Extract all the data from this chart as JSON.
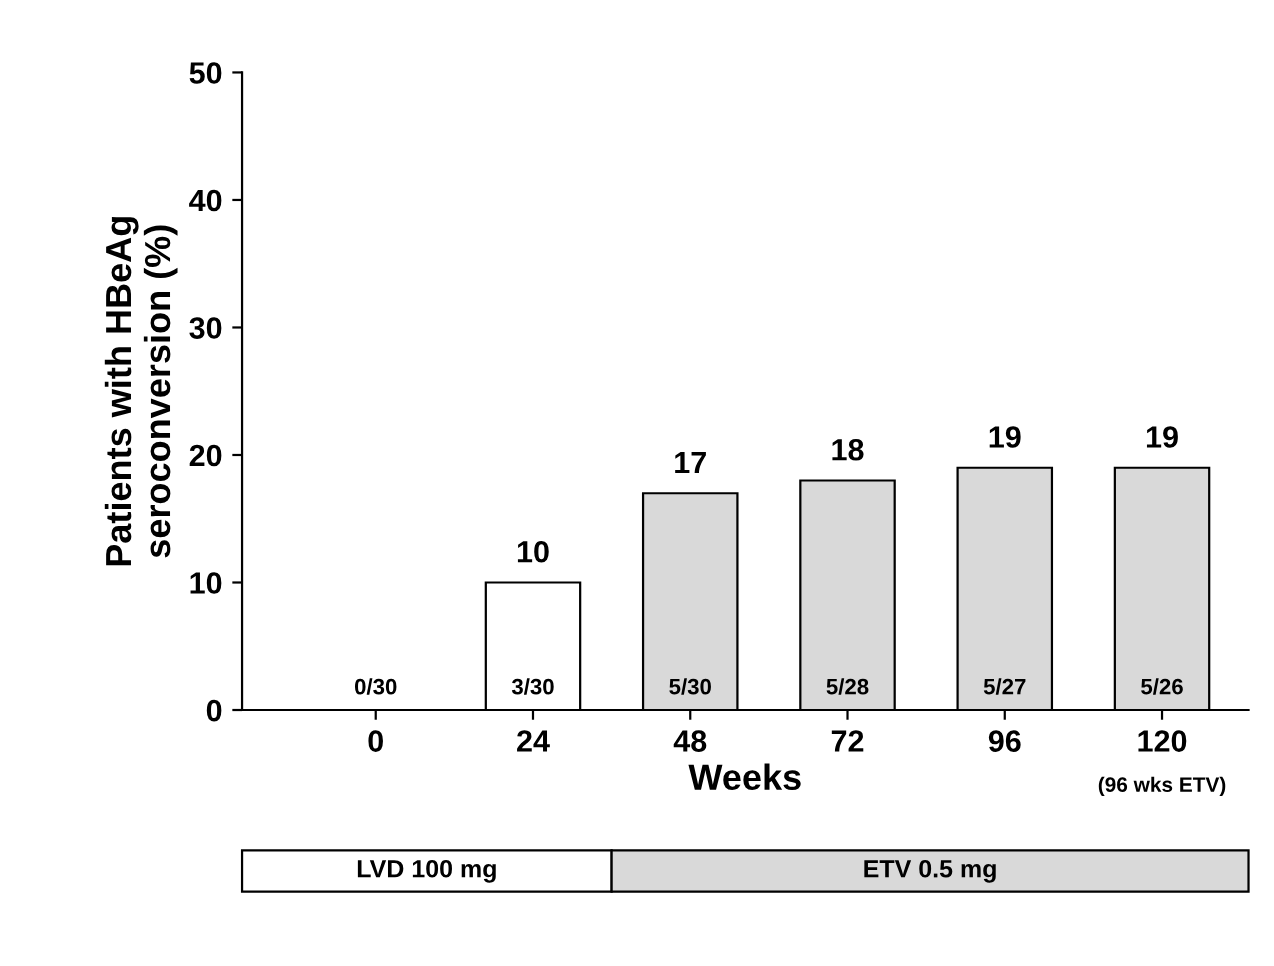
{
  "chart_data": {
    "type": "bar",
    "xlabel": "Weeks",
    "ylabel": "Patients with HBeAg\nseroconversion (%)",
    "categories": [
      "0",
      "24",
      "48",
      "72",
      "96",
      "120"
    ],
    "values": [
      0,
      10,
      17,
      18,
      19,
      19
    ],
    "value_labels": [
      null,
      "10",
      "17",
      "18",
      "19",
      "19"
    ],
    "colors": [
      "#ffffff",
      "#ffffff",
      "#d9d9d9",
      "#d9d9d9",
      "#d9d9d9",
      "#d9d9d9"
    ],
    "ylim": [
      0,
      50
    ],
    "yticks": [
      0,
      10,
      20,
      30,
      40,
      50
    ],
    "grid": false,
    "legend": false,
    "annotations": [
      {
        "text": "0/30",
        "x": "0",
        "y": 0
      },
      {
        "text": "3/30",
        "x": "24",
        "y": 0
      },
      {
        "text": "5/30",
        "x": "48",
        "y": 0
      },
      {
        "text": "5/28",
        "x": "72",
        "y": 0
      },
      {
        "text": "5/27",
        "x": "96",
        "y": 0
      },
      {
        "text": "5/26",
        "x": "120",
        "y": 0
      },
      "(96 wks ETV)",
      "LVD 100 mg",
      "ETV 0.5 mg"
    ]
  }
}
